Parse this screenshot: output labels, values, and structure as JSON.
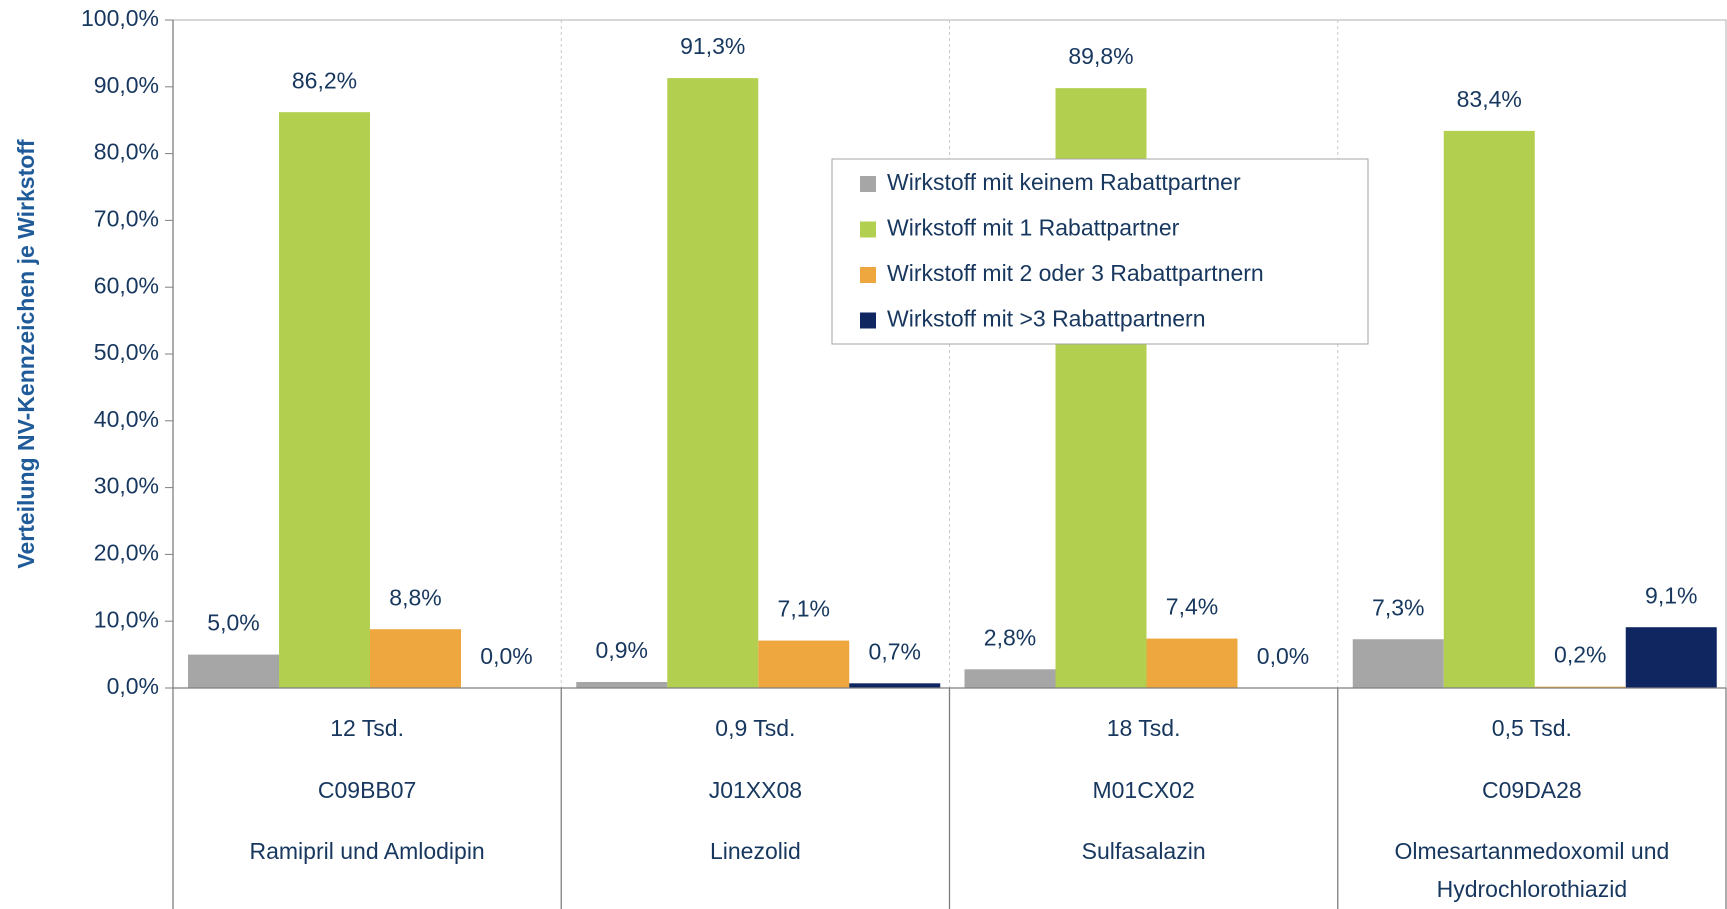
{
  "chart_data": {
    "type": "bar",
    "y_axis_label": "Verteilung NV-Kennzeichen je Wirkstoff",
    "categories": [
      [
        "12 Tsd.",
        "C09BB07",
        "Ramipril und Amlodipin"
      ],
      [
        "0,9 Tsd.",
        "J01XX08",
        "Linezolid"
      ],
      [
        "18 Tsd.",
        "M01CX02",
        "Sulfasalazin"
      ],
      [
        "0,5 Tsd.",
        "C09DA28",
        "Olmesartanmedoxomil und Hydrochlorothiazid"
      ]
    ],
    "series": [
      {
        "name": "Wirkstoff mit keinem Rabattpartner",
        "color": "#a6a6a6",
        "values": [
          5.0,
          0.9,
          2.8,
          7.3
        ],
        "value_labels": [
          "5,0%",
          "0,9%",
          "2,8%",
          "7,3%"
        ]
      },
      {
        "name": "Wirkstoff mit 1 Rabattpartner",
        "color": "#b3cf4f",
        "values": [
          86.2,
          91.3,
          89.8,
          83.4
        ],
        "value_labels": [
          "86,2%",
          "91,3%",
          "89,8%",
          "83,4%"
        ]
      },
      {
        "name": "Wirkstoff mit 2 oder 3 Rabattpartnern",
        "color": "#eea73e",
        "values": [
          8.8,
          7.1,
          7.4,
          0.2
        ],
        "value_labels": [
          "8,8%",
          "7,1%",
          "7,4%",
          "0,2%"
        ]
      },
      {
        "name": "Wirkstoff mit >3 Rabattpartnern",
        "color": "#0f2660",
        "values": [
          0.0,
          0.7,
          0.0,
          9.1
        ],
        "value_labels": [
          "0,0%",
          "0,7%",
          "0,0%",
          "9,1%"
        ]
      }
    ],
    "ylim": [
      0,
      100
    ],
    "yticks": [
      {
        "value": 0,
        "label": "0,0%"
      },
      {
        "value": 10,
        "label": "10,0%"
      },
      {
        "value": 20,
        "label": "20,0%"
      },
      {
        "value": 30,
        "label": "30,0%"
      },
      {
        "value": 40,
        "label": "40,0%"
      },
      {
        "value": 50,
        "label": "50,0%"
      },
      {
        "value": 60,
        "label": "60,0%"
      },
      {
        "value": 70,
        "label": "70,0%"
      },
      {
        "value": 80,
        "label": "80,0%"
      },
      {
        "value": 90,
        "label": "90,0%"
      },
      {
        "value": 100,
        "label": "100,0%"
      }
    ],
    "legend": "upper center"
  }
}
